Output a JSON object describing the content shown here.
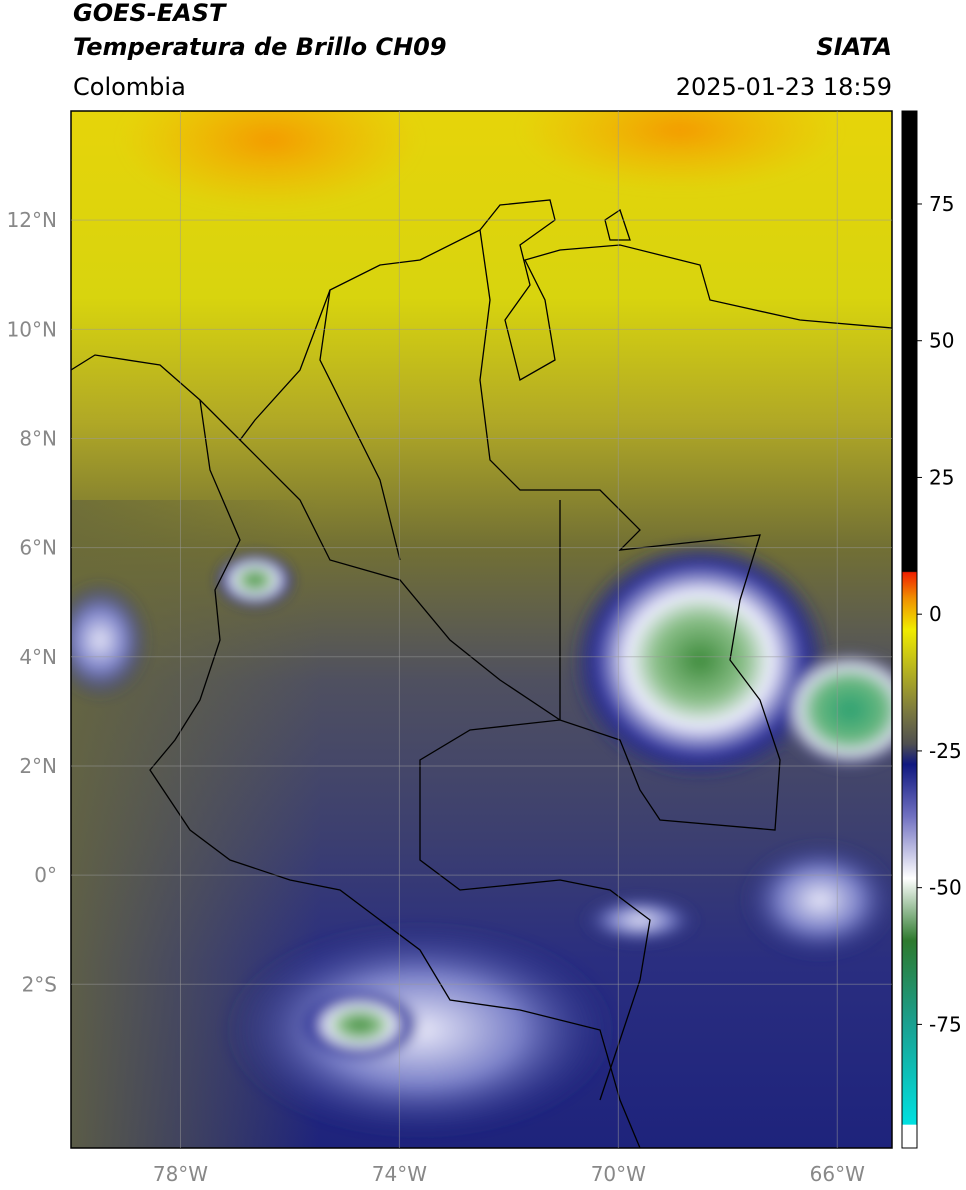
{
  "header": {
    "title": "GOES-EAST",
    "subtitle": "Temperatura de Brillo CH09",
    "region": "Colombia",
    "source": "SIATA",
    "datetime": "2025-01-23 18:59"
  },
  "map": {
    "xlim": [
      -80,
      -65
    ],
    "ylim": [
      -5,
      14
    ],
    "xticks": [
      {
        "value": -78,
        "label": "78°W"
      },
      {
        "value": -74,
        "label": "74°W"
      },
      {
        "value": -70,
        "label": "70°W"
      },
      {
        "value": -66,
        "label": "66°W"
      }
    ],
    "yticks": [
      {
        "value": 12,
        "label": "12°N"
      },
      {
        "value": 10,
        "label": "10°N"
      },
      {
        "value": 8,
        "label": "8°N"
      },
      {
        "value": 6,
        "label": "6°N"
      },
      {
        "value": 4,
        "label": "4°N"
      },
      {
        "value": 2,
        "label": "2°N"
      },
      {
        "value": 0,
        "label": "0°"
      },
      {
        "value": -2,
        "label": "2°S"
      }
    ],
    "grid": true
  },
  "colorbar": {
    "lim": [
      -97.6,
      92
    ],
    "ticks": [
      75,
      50,
      25,
      0,
      -25,
      -50,
      -75
    ]
  }
}
